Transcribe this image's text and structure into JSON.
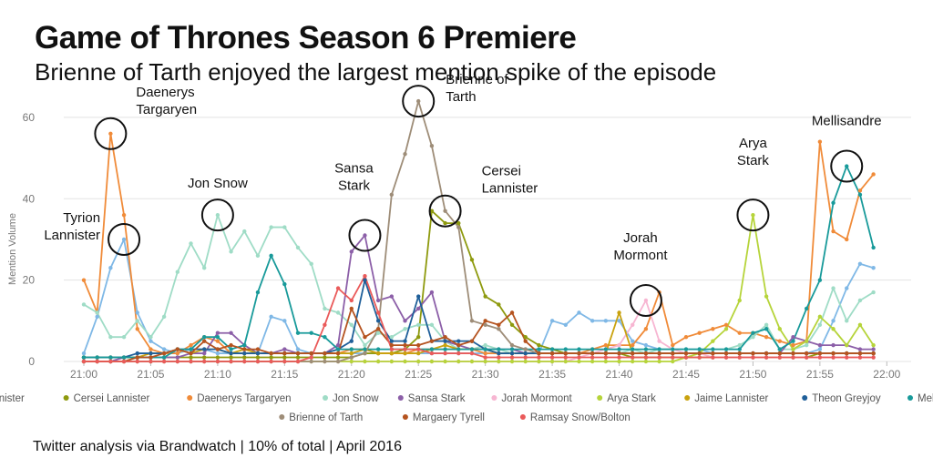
{
  "title": "Game of Thrones Season 6 Premiere",
  "subtitle": "Brienne of Tarth enjoyed the largest mention spike of the episode",
  "footer": "Twitter analysis via Brandwatch | 10% of total | April 2016",
  "chart_data": {
    "type": "line",
    "ylabel": "Mention Volume",
    "xlabel": "",
    "xlim": [
      0,
      61
    ],
    "ylim": [
      0,
      62
    ],
    "y_ticks": [
      0,
      20,
      40,
      60
    ],
    "x_ticks": [
      {
        "v": 0,
        "label": "21:00"
      },
      {
        "v": 5,
        "label": "21:05"
      },
      {
        "v": 10,
        "label": "21:10"
      },
      {
        "v": 15,
        "label": "21:15"
      },
      {
        "v": 20,
        "label": "21:20"
      },
      {
        "v": 25,
        "label": "21:25"
      },
      {
        "v": 30,
        "label": "21:30"
      },
      {
        "v": 35,
        "label": "21:35"
      },
      {
        "v": 40,
        "label": "21:40"
      },
      {
        "v": 45,
        "label": "21:45"
      },
      {
        "v": 50,
        "label": "21:50"
      },
      {
        "v": 55,
        "label": "21:55"
      },
      {
        "v": 60,
        "label": "22:00"
      }
    ],
    "grid": true,
    "legend": "bottom",
    "series": [
      {
        "name": "Tyrion Lannister",
        "color": "#7fb8e6",
        "values": [
          2,
          11,
          23,
          30,
          12,
          5,
          3,
          2,
          3,
          3,
          2,
          2,
          2,
          2,
          11,
          10,
          3,
          2,
          2,
          2,
          2,
          2,
          2,
          2,
          2,
          2,
          2,
          2,
          2,
          2,
          2,
          2,
          2,
          2,
          2,
          10,
          9,
          12,
          10,
          10,
          10,
          5,
          4,
          3,
          3,
          3,
          3,
          2,
          2,
          2,
          2,
          2,
          2,
          2,
          2,
          3,
          10,
          18,
          24,
          23
        ]
      },
      {
        "name": "Cersei Lannister",
        "color": "#8e9a0e",
        "values": [
          1,
          1,
          1,
          1,
          1,
          1,
          1,
          1,
          1,
          1,
          1,
          1,
          1,
          1,
          1,
          1,
          1,
          1,
          1,
          1,
          1,
          2,
          2,
          2,
          3,
          6,
          37,
          34,
          34,
          25,
          16,
          14,
          9,
          6,
          4,
          3,
          2,
          2,
          2,
          2,
          2,
          1,
          1,
          1,
          1,
          1,
          1,
          1,
          1,
          1,
          1,
          1,
          1,
          1,
          1,
          2,
          2,
          2,
          2,
          2
        ]
      },
      {
        "name": "Daenerys Targaryen",
        "color": "#f08b39",
        "values": [
          20,
          12,
          56,
          36,
          8,
          3,
          2,
          2,
          4,
          6,
          5,
          2,
          2,
          2,
          2,
          2,
          2,
          2,
          2,
          2,
          3,
          3,
          2,
          2,
          2,
          3,
          3,
          3,
          3,
          3,
          2,
          2,
          2,
          2,
          2,
          2,
          2,
          2,
          3,
          4,
          4,
          4,
          8,
          17,
          4,
          6,
          7,
          8,
          9,
          7,
          7,
          6,
          5,
          4,
          5,
          54,
          32,
          30,
          42,
          46
        ]
      },
      {
        "name": "Jon Snow",
        "color": "#9fdcc6",
        "values": [
          14,
          12,
          6,
          6,
          10,
          6,
          11,
          22,
          29,
          23,
          36,
          27,
          32,
          26,
          33,
          33,
          28,
          24,
          13,
          12,
          9,
          4,
          7,
          6,
          8,
          9,
          9,
          5,
          3,
          3,
          4,
          3,
          2,
          2,
          2,
          2,
          2,
          2,
          2,
          2,
          2,
          3,
          2,
          3,
          3,
          3,
          3,
          3,
          3,
          4,
          6,
          9,
          3,
          3,
          4,
          9,
          18,
          10,
          15,
          17
        ]
      },
      {
        "name": "Sansa Stark",
        "color": "#8c5fa8",
        "values": [
          0,
          0,
          0,
          1,
          1,
          1,
          1,
          1,
          2,
          2,
          7,
          7,
          4,
          2,
          2,
          3,
          2,
          2,
          2,
          4,
          27,
          31,
          15,
          16,
          10,
          13,
          17,
          5,
          4,
          3,
          3,
          3,
          3,
          2,
          2,
          2,
          2,
          2,
          2,
          2,
          2,
          2,
          2,
          2,
          2,
          2,
          2,
          2,
          2,
          2,
          2,
          2,
          2,
          6,
          5,
          4,
          4,
          4,
          3,
          3
        ]
      },
      {
        "name": "Jorah Mormont",
        "color": "#f7b6d2",
        "values": [
          0,
          0,
          0,
          0,
          0,
          0,
          0,
          0,
          0,
          0,
          0,
          0,
          0,
          0,
          0,
          0,
          0,
          0,
          0,
          0,
          0,
          0,
          0,
          0,
          0,
          0,
          0,
          0,
          0,
          0,
          0,
          0,
          0,
          0,
          0,
          0,
          0,
          1,
          2,
          3,
          4,
          9,
          15,
          5,
          3,
          2,
          2,
          1,
          1,
          1,
          1,
          1,
          1,
          1,
          1,
          1,
          1,
          1,
          1,
          1
        ]
      },
      {
        "name": "Arya Stark",
        "color": "#b6d43a",
        "values": [
          0,
          0,
          0,
          0,
          0,
          0,
          0,
          0,
          0,
          0,
          0,
          0,
          0,
          0,
          0,
          0,
          0,
          0,
          0,
          0,
          0,
          0,
          0,
          0,
          0,
          0,
          0,
          0,
          0,
          0,
          0,
          0,
          0,
          0,
          0,
          0,
          0,
          0,
          0,
          0,
          0,
          0,
          0,
          0,
          0,
          1,
          2,
          5,
          8,
          15,
          36,
          16,
          8,
          3,
          5,
          11,
          8,
          4,
          9,
          4
        ]
      },
      {
        "name": "Jaime Lannister",
        "color": "#c9a20e",
        "values": [
          1,
          1,
          1,
          1,
          1,
          2,
          2,
          3,
          2,
          3,
          3,
          2,
          3,
          2,
          2,
          2,
          2,
          2,
          2,
          2,
          2,
          3,
          2,
          2,
          2,
          2,
          3,
          4,
          3,
          3,
          3,
          2,
          2,
          2,
          2,
          2,
          2,
          2,
          2,
          2,
          12,
          2,
          2,
          2,
          2,
          2,
          2,
          2,
          2,
          2,
          2,
          2,
          2,
          2,
          2,
          2,
          2,
          2,
          2,
          2
        ]
      },
      {
        "name": "Theon Greyjoy",
        "color": "#1f5f99",
        "values": [
          1,
          1,
          1,
          1,
          2,
          2,
          2,
          3,
          3,
          3,
          3,
          2,
          2,
          2,
          2,
          2,
          2,
          2,
          2,
          3,
          5,
          20,
          10,
          5,
          5,
          16,
          5,
          5,
          5,
          5,
          3,
          2,
          2,
          2,
          2,
          2,
          2,
          2,
          2,
          2,
          2,
          2,
          2,
          2,
          2,
          2,
          2,
          2,
          2,
          2,
          2,
          2,
          2,
          2,
          2,
          2,
          2,
          2,
          2,
          2
        ]
      },
      {
        "name": "Melisandre",
        "color": "#189a9a",
        "values": [
          1,
          1,
          1,
          1,
          1,
          1,
          1,
          3,
          3,
          6,
          6,
          3,
          4,
          17,
          26,
          19,
          7,
          7,
          6,
          3,
          3,
          3,
          3,
          3,
          3,
          3,
          3,
          3,
          3,
          3,
          3,
          3,
          3,
          3,
          3,
          3,
          3,
          3,
          3,
          3,
          3,
          3,
          3,
          3,
          3,
          3,
          3,
          3,
          3,
          3,
          7,
          8,
          3,
          5,
          13,
          20,
          39,
          48,
          41,
          28
        ]
      },
      {
        "name": "Brienne of Tarth",
        "color": "#9e8d78",
        "values": [
          0,
          0,
          0,
          0,
          0,
          0,
          0,
          0,
          0,
          0,
          0,
          0,
          0,
          0,
          0,
          0,
          0,
          0,
          0,
          0,
          1,
          2,
          8,
          41,
          51,
          64,
          53,
          37,
          33,
          10,
          9,
          8,
          4,
          3,
          2,
          2,
          2,
          2,
          2,
          2,
          2,
          2,
          2,
          2,
          2,
          2,
          2,
          2,
          2,
          2,
          2,
          2,
          2,
          2,
          2,
          2,
          2,
          2,
          2,
          2
        ]
      },
      {
        "name": "Margaery Tyrell",
        "color": "#b5531f",
        "values": [
          0,
          0,
          0,
          0,
          1,
          1,
          2,
          3,
          2,
          5,
          3,
          4,
          3,
          3,
          2,
          2,
          2,
          2,
          2,
          2,
          13,
          6,
          8,
          4,
          4,
          4,
          5,
          6,
          4,
          5,
          10,
          9,
          12,
          5,
          2,
          2,
          2,
          2,
          2,
          2,
          2,
          2,
          2,
          2,
          2,
          2,
          2,
          2,
          2,
          2,
          2,
          2,
          2,
          2,
          2,
          2,
          2,
          2,
          2,
          2
        ]
      },
      {
        "name": "Ramsay Snow/Bolton",
        "color": "#ea5a5a",
        "values": [
          0,
          0,
          0,
          0,
          0,
          0,
          0,
          0,
          0,
          0,
          0,
          0,
          0,
          0,
          0,
          0,
          0,
          1,
          9,
          18,
          15,
          21,
          12,
          3,
          3,
          3,
          2,
          2,
          2,
          2,
          1,
          1,
          1,
          1,
          1,
          1,
          1,
          1,
          1,
          1,
          1,
          1,
          1,
          1,
          1,
          1,
          1,
          1,
          1,
          1,
          1,
          1,
          1,
          1,
          1,
          1,
          1,
          1,
          1,
          1
        ]
      }
    ],
    "annotations": [
      {
        "lines": [
          "Daenerys",
          "Targaryen"
        ],
        "x": 2,
        "y": 56
      },
      {
        "lines": [
          "Tyrion",
          "Lannister"
        ],
        "x": 3,
        "y": 30
      },
      {
        "lines": [
          "Jon Snow"
        ],
        "x": 10,
        "y": 36
      },
      {
        "lines": [
          "Sansa",
          "Stark"
        ],
        "x": 21,
        "y": 31
      },
      {
        "lines": [
          "Brienne of",
          "Tarth"
        ],
        "x": 25,
        "y": 64
      },
      {
        "lines": [
          "Cersei",
          "Lannister"
        ],
        "x": 27,
        "y": 37
      },
      {
        "lines": [
          "Jorah",
          "Mormont"
        ],
        "x": 42,
        "y": 15
      },
      {
        "lines": [
          "Arya",
          "Stark"
        ],
        "x": 50,
        "y": 36
      },
      {
        "lines": [
          "Mellisandre"
        ],
        "x": 57,
        "y": 48
      }
    ]
  }
}
